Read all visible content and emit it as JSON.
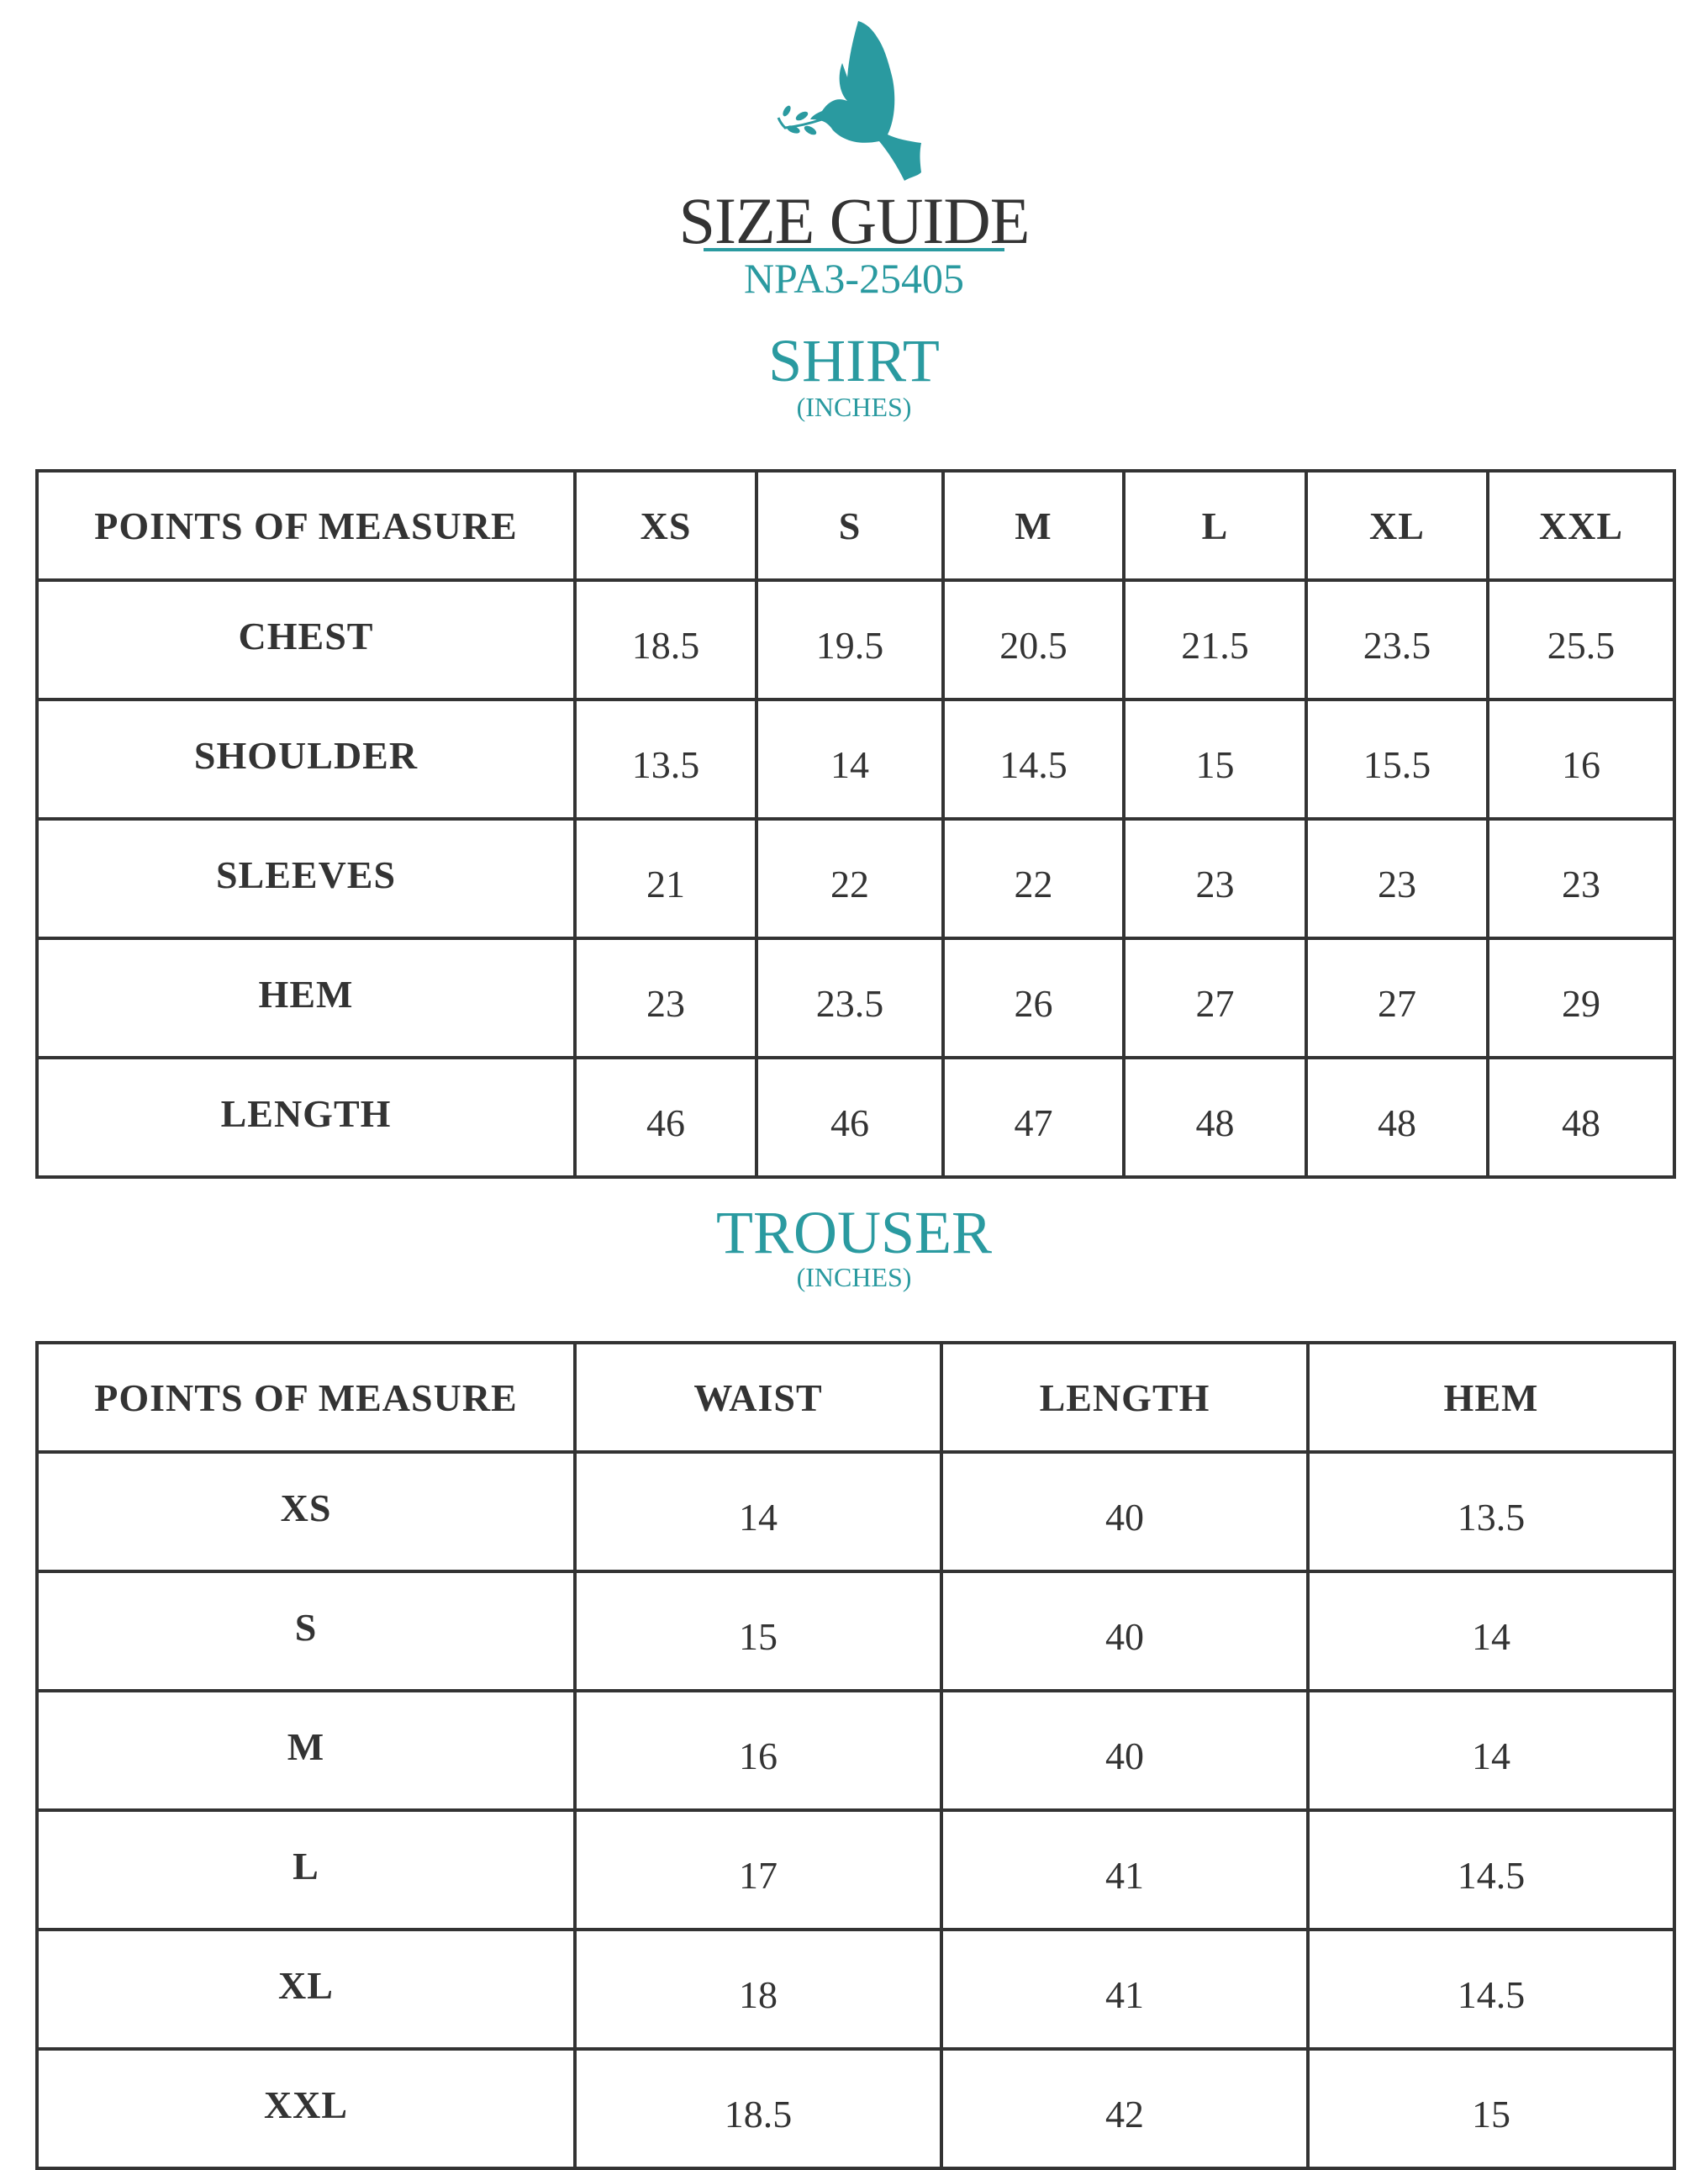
{
  "brand": {
    "logo": "dove-with-olive-branch",
    "accent_color": "#2a9aa0"
  },
  "header": {
    "title": "SIZE GUIDE",
    "code": "NPA3-25405"
  },
  "shirt": {
    "title": "SHIRT",
    "unit": "(INCHES)",
    "columns": [
      "POINTS OF MEASURE",
      "XS",
      "S",
      "M",
      "L",
      "XL",
      "XXL"
    ],
    "rows": [
      {
        "label": "CHEST",
        "values": [
          "18.5",
          "19.5",
          "20.5",
          "21.5",
          "23.5",
          "25.5"
        ]
      },
      {
        "label": "SHOULDER",
        "values": [
          "13.5",
          "14",
          "14.5",
          "15",
          "15.5",
          "16"
        ]
      },
      {
        "label": "SLEEVES",
        "values": [
          "21",
          "22",
          "22",
          "23",
          "23",
          "23"
        ]
      },
      {
        "label": "HEM",
        "values": [
          "23",
          "23.5",
          "26",
          "27",
          "27",
          "29"
        ]
      },
      {
        "label": "LENGTH",
        "values": [
          "46",
          "46",
          "47",
          "48",
          "48",
          "48"
        ]
      }
    ]
  },
  "trouser": {
    "title": "TROUSER",
    "unit": "(INCHES)",
    "columns": [
      "POINTS OF MEASURE",
      "WAIST",
      "LENGTH",
      "HEM"
    ],
    "rows": [
      {
        "label": "XS",
        "values": [
          "14",
          "40",
          "13.5"
        ]
      },
      {
        "label": "S",
        "values": [
          "15",
          "40",
          "14"
        ]
      },
      {
        "label": "M",
        "values": [
          "16",
          "40",
          "14"
        ]
      },
      {
        "label": "L",
        "values": [
          "17",
          "41",
          "14.5"
        ]
      },
      {
        "label": "XL",
        "values": [
          "18",
          "41",
          "14.5"
        ]
      },
      {
        "label": "XXL",
        "values": [
          "18.5",
          "42",
          "15"
        ]
      }
    ]
  }
}
